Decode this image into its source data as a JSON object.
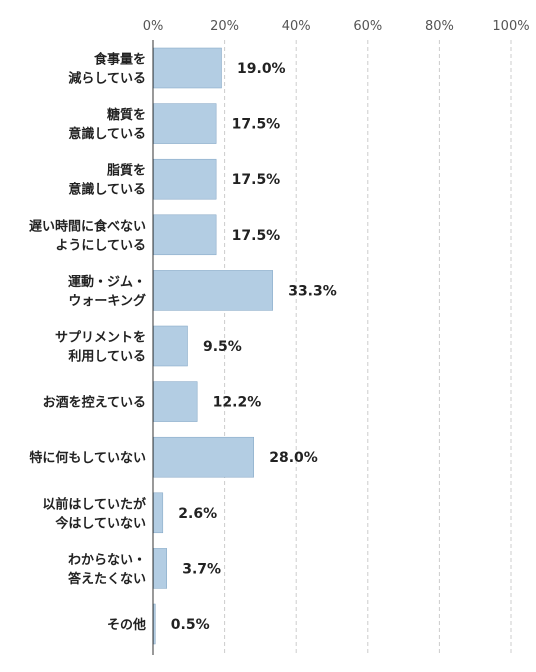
{
  "chart_data": {
    "type": "bar",
    "orientation": "horizontal",
    "categories": [
      [
        "食事量を",
        "減らしている"
      ],
      [
        "糖質を",
        "意識している"
      ],
      [
        "脂質を",
        "意識している"
      ],
      [
        "遅い時間に食べない",
        "ようにしている"
      ],
      [
        "運動・ジム・",
        "ウォーキング"
      ],
      [
        "サプリメントを",
        "利用している"
      ],
      [
        "お酒を控えている"
      ],
      [
        "特に何もしていない"
      ],
      [
        "以前はしていたが",
        "今はしていない"
      ],
      [
        "わからない・",
        "答えたくない"
      ],
      [
        "その他"
      ]
    ],
    "values": [
      19.0,
      17.5,
      17.5,
      17.5,
      33.3,
      9.5,
      12.2,
      28.0,
      2.6,
      3.7,
      0.5
    ],
    "value_labels": [
      "19.0%",
      "17.5%",
      "17.5%",
      "17.5%",
      "33.3%",
      "9.5%",
      "12.2%",
      "28.0%",
      "2.6%",
      "3.7%",
      "0.5%"
    ],
    "xlim": [
      0,
      100
    ],
    "xticks": [
      0,
      20,
      40,
      60,
      80,
      100
    ],
    "xtick_labels": [
      "0%",
      "20%",
      "40%",
      "60%",
      "80%",
      "100%"
    ],
    "grid": "vertical-dashed",
    "bar_color": "#b3cde3",
    "bar_edge_color": "#7fa3c2"
  }
}
